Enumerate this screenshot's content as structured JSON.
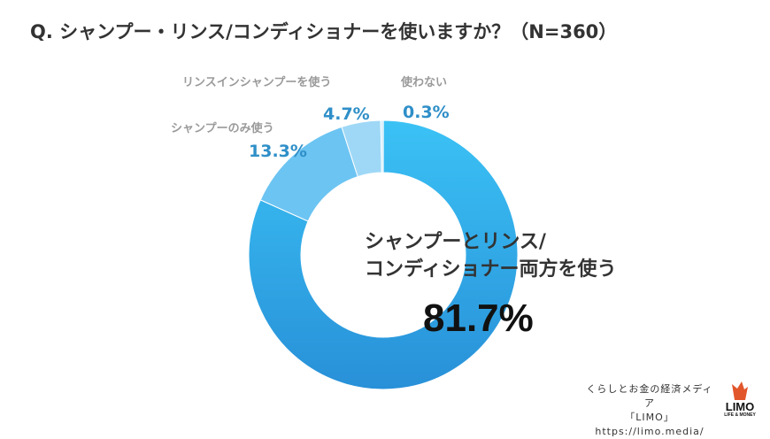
{
  "title": "Q. シャンプー・リンス/コンディショナーを使いますか？（N=360）",
  "chart_data": {
    "type": "pie",
    "title": "Q. シャンプー・リンス/コンディショナーを使いますか？（N=360）",
    "slices": [
      {
        "label": "シャンプーとリンス/コンディショナー両方を使う",
        "label_line1": "シャンプーとリンス/",
        "label_line2": "コンディショナー両方を使う",
        "value": 81.7,
        "value_label": "81.7%",
        "color": "#2c95dc"
      },
      {
        "label": "シャンプーのみ使う",
        "value": 13.3,
        "value_label": "13.3%",
        "color": "#6cc4f2"
      },
      {
        "label": "リンスインシャンプーを使う",
        "value": 4.7,
        "value_label": "4.7%",
        "color": "#9fd8f6"
      },
      {
        "label": "使わない",
        "value": 0.3,
        "value_label": "0.3%",
        "color": "#d4ecfa"
      }
    ]
  },
  "credit": {
    "line1": "くらしとお金の経済メディア",
    "line2": "「LIMO」",
    "line3": "https://limo.media/"
  },
  "logo": {
    "name": "LIMO",
    "tagline": "LIFE & MONEY",
    "color": "#e2562c"
  }
}
